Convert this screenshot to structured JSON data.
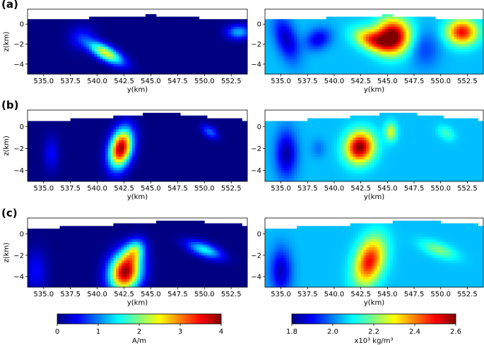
{
  "chart_data": {
    "type": "heatmap",
    "panels": [
      {
        "label": "(a)",
        "row": 0,
        "plots": [
          {
            "quantity": "magnetization",
            "colormap": "jet",
            "vmin": 0,
            "vmax": 4,
            "xlim": [
              533.5,
              554.0
            ],
            "ylim": [
              -5.0,
              1.5
            ],
            "x_ticks": [
              "535.0",
              "537.5",
              "540.0",
              "542.5",
              "545.0",
              "547.5",
              "550.0",
              "552.5"
            ],
            "y_ticks": [
              "0",
              "-2",
              "-4"
            ],
            "xlabel": "y(km)",
            "ylabel": "z(km)",
            "background": 0,
            "topography": [
              [
                533.5,
                0.5
              ],
              [
                536,
                0.55
              ],
              [
                539,
                0.6
              ],
              [
                541,
                0.75
              ],
              [
                543,
                0.8
              ],
              [
                545,
                0.9
              ],
              [
                546,
                0.85
              ],
              [
                548,
                0.7
              ],
              [
                550,
                0.6
              ],
              [
                552,
                0.55
              ],
              [
                554,
                0.5
              ]
            ],
            "anomalies": [
              {
                "y": 540.8,
                "z": -2.9,
                "sy": 1.3,
                "sz": 0.5,
                "rot": -0.55,
                "amp": 2.4
              },
              {
                "y": 538.5,
                "z": -1.3,
                "sy": 0.9,
                "sz": 0.8,
                "rot": 0.7,
                "amp": 0.5
              },
              {
                "y": 553.2,
                "z": -0.8,
                "sy": 0.8,
                "sz": 0.5,
                "rot": 0,
                "amp": 1.2
              }
            ]
          },
          {
            "quantity": "density",
            "colormap": "jet",
            "vmin": 1.8,
            "vmax": 2.6,
            "xlim": [
              533.5,
              554.0
            ],
            "ylim": [
              -5.0,
              1.5
            ],
            "x_ticks": [
              "535.0",
              "537.5",
              "540.0",
              "542.5",
              "545.0",
              "547.5",
              "550.0",
              "552.5"
            ],
            "y_ticks": [
              "0",
              "-2",
              "-4"
            ],
            "xlabel": "y(km)",
            "ylabel": "",
            "background": 2.05,
            "topography": [
              [
                533.5,
                0.5
              ],
              [
                536,
                0.55
              ],
              [
                539,
                0.6
              ],
              [
                541,
                0.75
              ],
              [
                543,
                0.8
              ],
              [
                545,
                0.9
              ],
              [
                546,
                0.85
              ],
              [
                548,
                0.7
              ],
              [
                550,
                0.6
              ],
              [
                552,
                0.55
              ],
              [
                554,
                0.5
              ]
            ],
            "anomalies": [
              {
                "y": 545.5,
                "z": -1.2,
                "sy": 1.1,
                "sz": 1.2,
                "rot": 0,
                "amp": 0.58
              },
              {
                "y": 543.5,
                "z": -1.6,
                "sy": 1.2,
                "sz": 0.7,
                "rot": -0.4,
                "amp": 0.35
              },
              {
                "y": 552.0,
                "z": -0.8,
                "sy": 1.0,
                "sz": 0.9,
                "rot": 0,
                "amp": 0.45
              },
              {
                "y": 535.5,
                "z": -1.5,
                "sy": 0.7,
                "sz": 1.6,
                "rot": 0.3,
                "amp": -0.2
              },
              {
                "y": 538.5,
                "z": -1.5,
                "sy": 0.9,
                "sz": 0.7,
                "rot": 0.6,
                "amp": -0.17
              },
              {
                "y": 548.5,
                "z": -2.5,
                "sy": 1.0,
                "sz": 1.3,
                "rot": 0,
                "amp": -0.1
              }
            ]
          }
        ]
      },
      {
        "label": "(b)",
        "row": 1,
        "plots": [
          {
            "quantity": "magnetization",
            "colormap": "jet",
            "vmin": 0,
            "vmax": 4,
            "xlim": [
              533.5,
              554.0
            ],
            "ylim": [
              -5.0,
              1.5
            ],
            "x_ticks": [
              "535.0",
              "537.5",
              "540.0",
              "542.5",
              "545.0",
              "547.5",
              "550.0",
              "552.5"
            ],
            "y_ticks": [
              "0",
              "-2",
              "-4"
            ],
            "xlabel": "y(km)",
            "ylabel": "z(km)",
            "background": 0,
            "topography": [
              [
                533.5,
                0.5
              ],
              [
                536,
                0.55
              ],
              [
                539,
                0.7
              ],
              [
                542,
                0.9
              ],
              [
                545,
                1.2
              ],
              [
                546,
                1.25
              ],
              [
                548,
                1.1
              ],
              [
                550,
                0.9
              ],
              [
                552,
                0.7
              ],
              [
                554,
                0.6
              ]
            ],
            "anomalies": [
              {
                "y": 542.2,
                "z": -2.0,
                "sy": 0.7,
                "sz": 1.25,
                "rot": -0.25,
                "amp": 3.9
              },
              {
                "y": 535.7,
                "z": -2.5,
                "sy": 0.5,
                "sz": 1.1,
                "rot": 0,
                "amp": 0.5
              },
              {
                "y": 550.5,
                "z": -0.5,
                "sy": 0.6,
                "sz": 0.35,
                "rot": -0.6,
                "amp": 0.9
              }
            ]
          },
          {
            "quantity": "density",
            "colormap": "jet",
            "vmin": 1.8,
            "vmax": 2.6,
            "xlim": [
              533.5,
              554.0
            ],
            "ylim": [
              -5.0,
              1.5
            ],
            "x_ticks": [
              "535.0",
              "537.5",
              "540.0",
              "542.5",
              "545.0",
              "547.5",
              "550.0",
              "552.5"
            ],
            "y_ticks": [
              "0",
              "-2",
              "-4"
            ],
            "xlabel": "y(km)",
            "ylabel": "",
            "background": 2.05,
            "topography": [
              [
                533.5,
                0.5
              ],
              [
                536,
                0.55
              ],
              [
                539,
                0.7
              ],
              [
                542,
                0.9
              ],
              [
                545,
                1.2
              ],
              [
                546,
                1.25
              ],
              [
                548,
                1.1
              ],
              [
                550,
                0.9
              ],
              [
                552,
                0.7
              ],
              [
                554,
                0.6
              ]
            ],
            "anomalies": [
              {
                "y": 542.4,
                "z": -1.9,
                "sy": 0.9,
                "sz": 1.0,
                "rot": -0.35,
                "amp": 0.55
              },
              {
                "y": 545.3,
                "z": -0.5,
                "sy": 0.4,
                "sz": 0.6,
                "rot": 0,
                "amp": 0.22
              },
              {
                "y": 535.5,
                "z": -2.5,
                "sy": 0.7,
                "sz": 1.5,
                "rot": 0,
                "amp": -0.22
              },
              {
                "y": 550.5,
                "z": -0.6,
                "sy": 0.6,
                "sz": 0.4,
                "rot": -0.6,
                "amp": 0.1
              },
              {
                "y": 538.5,
                "z": -2.0,
                "sy": 0.5,
                "sz": 0.6,
                "rot": 0,
                "amp": -0.06
              }
            ]
          }
        ]
      },
      {
        "label": "(c)",
        "row": 2,
        "plots": [
          {
            "quantity": "magnetization",
            "colormap": "jet",
            "vmin": 0,
            "vmax": 4,
            "xlim": [
              533.5,
              554.0
            ],
            "ylim": [
              -5.0,
              1.5
            ],
            "x_ticks": [
              "535.0",
              "537.5",
              "540.0",
              "542.5",
              "545.0",
              "547.5",
              "550.0",
              "552.5"
            ],
            "y_ticks": [
              "0",
              "-2",
              "-4"
            ],
            "xlabel": "y(km)",
            "ylabel": "z(km)",
            "background": 0,
            "topography": [
              [
                533.5,
                0.5
              ],
              [
                536,
                0.6
              ],
              [
                539,
                0.75
              ],
              [
                542,
                0.9
              ],
              [
                545,
                1.1
              ],
              [
                547,
                1.2
              ],
              [
                549,
                1.25
              ],
              [
                551,
                1.0
              ],
              [
                553,
                0.9
              ],
              [
                554,
                0.85
              ]
            ],
            "anomalies": [
              {
                "y": 542.6,
                "z": -3.6,
                "sy": 1.0,
                "sz": 1.3,
                "rot": -0.25,
                "amp": 3.9
              },
              {
                "y": 543.5,
                "z": -1.6,
                "sy": 0.6,
                "sz": 0.8,
                "rot": -0.5,
                "amp": 1.6
              },
              {
                "y": 550.0,
                "z": -1.5,
                "sy": 1.2,
                "sz": 0.45,
                "rot": -0.35,
                "amp": 1.5
              },
              {
                "y": 534.3,
                "z": -3.5,
                "sy": 0.7,
                "sz": 1.4,
                "rot": 0,
                "amp": 0.5
              }
            ]
          },
          {
            "quantity": "density",
            "colormap": "jet",
            "vmin": 1.8,
            "vmax": 2.6,
            "xlim": [
              533.5,
              554.0
            ],
            "ylim": [
              -5.0,
              1.5
            ],
            "x_ticks": [
              "535.0",
              "537.5",
              "540.0",
              "542.5",
              "545.0",
              "547.5",
              "550.0",
              "552.5"
            ],
            "y_ticks": [
              "0",
              "-2",
              "-4"
            ],
            "xlabel": "y(km)",
            "ylabel": "",
            "background": 2.05,
            "topography": [
              [
                533.5,
                0.5
              ],
              [
                536,
                0.6
              ],
              [
                539,
                0.75
              ],
              [
                542,
                0.9
              ],
              [
                545,
                1.1
              ],
              [
                547,
                1.2
              ],
              [
                549,
                1.25
              ],
              [
                551,
                1.0
              ],
              [
                553,
                0.9
              ],
              [
                554,
                0.85
              ]
            ],
            "anomalies": [
              {
                "y": 543.3,
                "z": -2.6,
                "sy": 0.9,
                "sz": 1.6,
                "rot": -0.3,
                "amp": 0.45
              },
              {
                "y": 549.8,
                "z": -1.5,
                "sy": 1.2,
                "sz": 0.45,
                "rot": -0.35,
                "amp": 0.15
              },
              {
                "y": 535.0,
                "z": -3.5,
                "sy": 0.7,
                "sz": 1.5,
                "rot": 0,
                "amp": -0.2
              }
            ]
          }
        ]
      }
    ],
    "colorbars": [
      {
        "colormap": "jet",
        "vmin": 0,
        "vmax": 4,
        "ticks": [
          "0",
          "1",
          "2",
          "3",
          "4"
        ],
        "label": "A/m"
      },
      {
        "colormap": "jet",
        "vmin": 1.8,
        "vmax": 2.6,
        "ticks": [
          "1.8",
          "2.0",
          "2.2",
          "2.4",
          "2.6"
        ],
        "label": "x10³ kg/m³"
      }
    ]
  }
}
